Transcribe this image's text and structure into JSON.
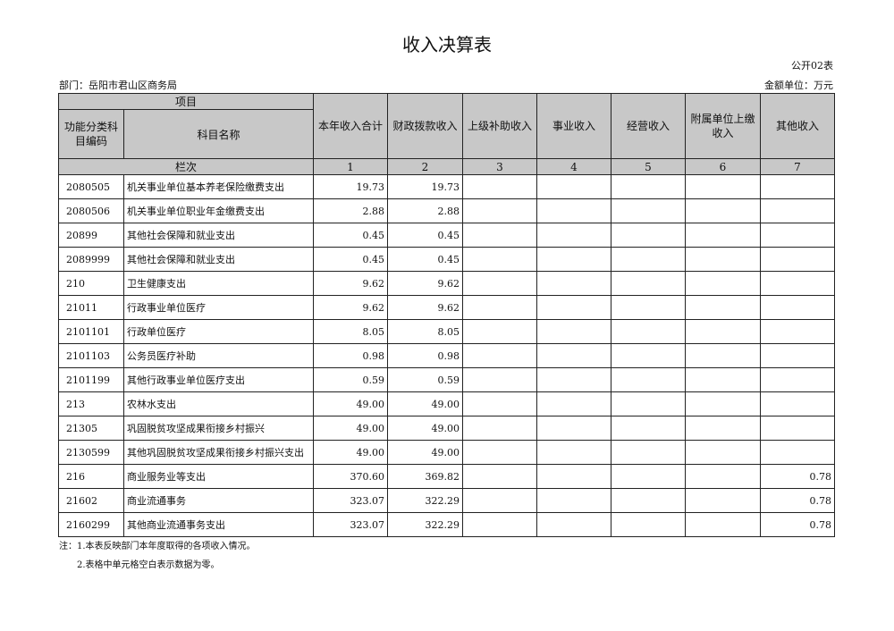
{
  "title": "收入决算表",
  "form_no": "公开02表",
  "department": "部门：岳阳市君山区商务局",
  "unit": "金额单位：万元",
  "header": {
    "item": "项目",
    "code": "功能分类科目编码",
    "name": "科目名称",
    "columns": [
      "本年收入合计",
      "财政拨款收入",
      "上级补助收入",
      "事业收入",
      "经营收入",
      "附属单位上缴收入",
      "其他收入"
    ],
    "seq_label": "栏次",
    "seq": [
      "1",
      "2",
      "3",
      "4",
      "5",
      "6",
      "7"
    ]
  },
  "rows": [
    {
      "code": "2080505",
      "name": "机关事业单位基本养老保险缴费支出",
      "v": [
        "19.73",
        "19.73",
        "",
        "",
        "",
        "",
        ""
      ]
    },
    {
      "code": "2080506",
      "name": "机关事业单位职业年金缴费支出",
      "v": [
        "2.88",
        "2.88",
        "",
        "",
        "",
        "",
        ""
      ]
    },
    {
      "code": "20899",
      "name": "其他社会保障和就业支出",
      "v": [
        "0.45",
        "0.45",
        "",
        "",
        "",
        "",
        ""
      ]
    },
    {
      "code": "2089999",
      "name": "其他社会保障和就业支出",
      "v": [
        "0.45",
        "0.45",
        "",
        "",
        "",
        "",
        ""
      ]
    },
    {
      "code": "210",
      "name": "卫生健康支出",
      "v": [
        "9.62",
        "9.62",
        "",
        "",
        "",
        "",
        ""
      ]
    },
    {
      "code": "21011",
      "name": "行政事业单位医疗",
      "v": [
        "9.62",
        "9.62",
        "",
        "",
        "",
        "",
        ""
      ]
    },
    {
      "code": "2101101",
      "name": "行政单位医疗",
      "v": [
        "8.05",
        "8.05",
        "",
        "",
        "",
        "",
        ""
      ]
    },
    {
      "code": "2101103",
      "name": "公务员医疗补助",
      "v": [
        "0.98",
        "0.98",
        "",
        "",
        "",
        "",
        ""
      ]
    },
    {
      "code": "2101199",
      "name": "其他行政事业单位医疗支出",
      "v": [
        "0.59",
        "0.59",
        "",
        "",
        "",
        "",
        ""
      ]
    },
    {
      "code": "213",
      "name": "农林水支出",
      "v": [
        "49.00",
        "49.00",
        "",
        "",
        "",
        "",
        ""
      ]
    },
    {
      "code": "21305",
      "name": "巩固脱贫攻坚成果衔接乡村振兴",
      "v": [
        "49.00",
        "49.00",
        "",
        "",
        "",
        "",
        ""
      ]
    },
    {
      "code": "2130599",
      "name": "其他巩固脱贫攻坚成果衔接乡村振兴支出",
      "v": [
        "49.00",
        "49.00",
        "",
        "",
        "",
        "",
        ""
      ]
    },
    {
      "code": "216",
      "name": "商业服务业等支出",
      "v": [
        "370.60",
        "369.82",
        "",
        "",
        "",
        "",
        "0.78"
      ]
    },
    {
      "code": "21602",
      "name": "商业流通事务",
      "v": [
        "323.07",
        "322.29",
        "",
        "",
        "",
        "",
        "0.78"
      ]
    },
    {
      "code": "2160299",
      "name": "其他商业流通事务支出",
      "v": [
        "323.07",
        "322.29",
        "",
        "",
        "",
        "",
        "0.78"
      ]
    }
  ],
  "notes": [
    "注：1.本表反映部门本年度取得的各项收入情况。",
    "2.表格中单元格空白表示数据为零。"
  ]
}
